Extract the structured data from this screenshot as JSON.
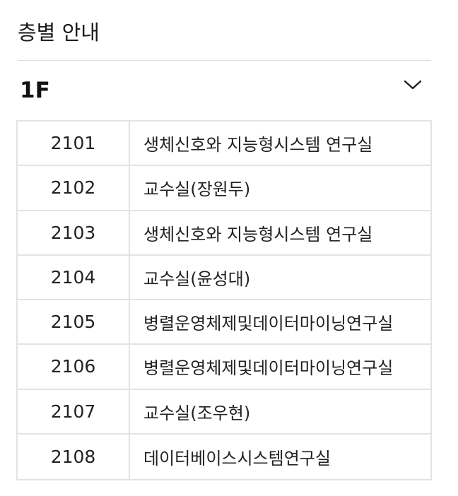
{
  "header": {
    "title": "층별 안내"
  },
  "floor_selector": {
    "value": "1F",
    "icon": "chevron-down-icon"
  },
  "rooms": [
    {
      "number": "2101",
      "name": "생체신호와 지능형시스템 연구실"
    },
    {
      "number": "2102",
      "name": "교수실(장원두)"
    },
    {
      "number": "2103",
      "name": "생체신호와 지능형시스템 연구실"
    },
    {
      "number": "2104",
      "name": "교수실(윤성대)"
    },
    {
      "number": "2105",
      "name": "병렬운영체제및데이터마이닝연구실"
    },
    {
      "number": "2106",
      "name": "병렬운영체제및데이터마이닝연구실"
    },
    {
      "number": "2107",
      "name": "교수실(조우현)"
    },
    {
      "number": "2108",
      "name": "데이터베이스시스템연구실"
    }
  ]
}
